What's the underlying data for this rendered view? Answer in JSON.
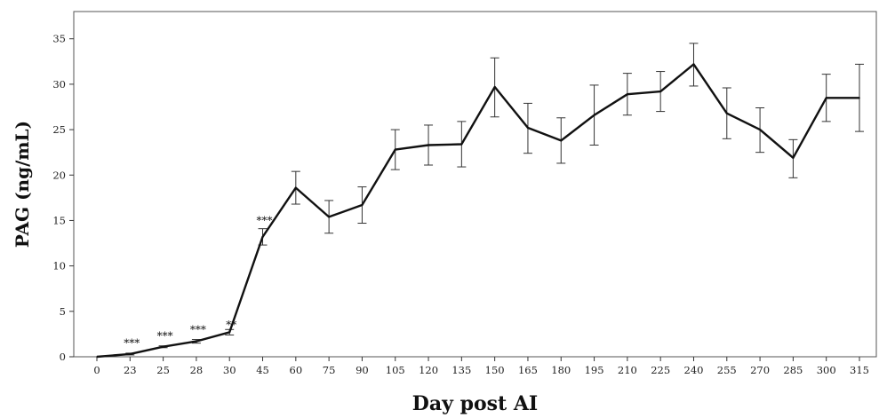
{
  "chart_data": {
    "type": "line",
    "xlabel": "Day post AI",
    "ylabel": "PAG (ng/mL)",
    "ylim": [
      0,
      38
    ],
    "yticks": [
      0,
      5,
      10,
      15,
      20,
      25,
      30,
      35
    ],
    "grid": false,
    "categories": [
      "0",
      "23",
      "25",
      "28",
      "30",
      "45",
      "60",
      "75",
      "90",
      "105",
      "120",
      "135",
      "150",
      "165",
      "180",
      "195",
      "210",
      "225",
      "240",
      "255",
      "270",
      "285",
      "300",
      "315"
    ],
    "series": [
      {
        "values": [
          0.0,
          0.3,
          1.1,
          1.7,
          2.7,
          13.2,
          18.6,
          15.4,
          16.7,
          22.8,
          23.3,
          23.4,
          29.7,
          25.2,
          23.8,
          26.6,
          28.9,
          29.2,
          32.2,
          26.8,
          25.0,
          21.9,
          28.5,
          28.5
        ],
        "error_low": [
          0.0,
          0.2,
          1.0,
          1.5,
          2.4,
          12.3,
          16.8,
          13.6,
          14.7,
          20.6,
          21.1,
          20.9,
          26.4,
          22.4,
          21.3,
          23.3,
          26.6,
          27.0,
          29.8,
          24.0,
          22.5,
          19.7,
          25.9,
          24.8
        ],
        "error_high": [
          0.0,
          0.4,
          1.2,
          1.9,
          3.0,
          14.1,
          20.4,
          17.2,
          18.7,
          25.0,
          25.5,
          25.9,
          32.9,
          27.9,
          26.3,
          29.9,
          31.2,
          31.4,
          34.5,
          29.6,
          27.4,
          23.9,
          31.1,
          32.2
        ]
      }
    ],
    "annotations": [
      {
        "category": "23",
        "text": "***",
        "y": 1.5
      },
      {
        "category": "25",
        "text": "***",
        "y": 2.3
      },
      {
        "category": "28",
        "text": "***",
        "y": 3.0
      },
      {
        "category": "30",
        "text": "**",
        "y": 3.5
      },
      {
        "category": "45",
        "text": "***",
        "y": 15.0
      }
    ]
  }
}
